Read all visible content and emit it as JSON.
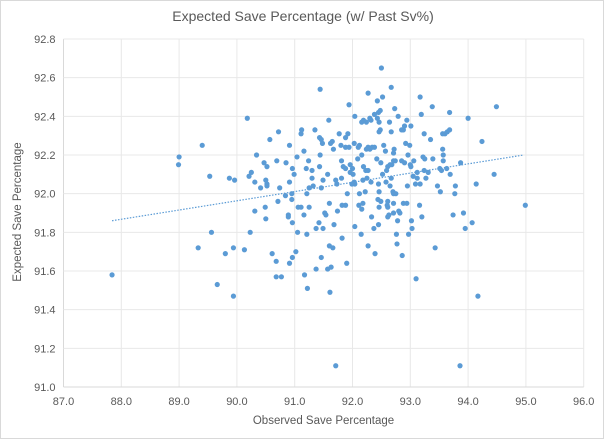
{
  "chart_data": {
    "type": "scatter",
    "title": "Expected Save Percentage (w/ Past Sv%)",
    "xlabel": "Observed Save Percentage",
    "ylabel": "Expected Save Percentage",
    "xlim": [
      87.0,
      96.0
    ],
    "ylim": [
      91.0,
      92.8
    ],
    "xticks": [
      "87.0",
      "88.0",
      "89.0",
      "90.0",
      "91.0",
      "92.0",
      "93.0",
      "94.0",
      "95.0",
      "96.0"
    ],
    "yticks": [
      "91.0",
      "91.2",
      "91.4",
      "91.6",
      "91.8",
      "92.0",
      "92.2",
      "92.4",
      "92.6",
      "92.8"
    ],
    "grid": true,
    "legend": "none",
    "marker_color": "#5B9BD5",
    "trendline": {
      "type": "linear",
      "style": "dotted",
      "x": [
        87.84,
        94.96
      ],
      "y": [
        91.86,
        92.2
      ]
    },
    "points": [
      [
        90.18,
        92.39
      ],
      [
        90.72,
        92.32
      ],
      [
        90.57,
        92.28
      ],
      [
        91.12,
        92.33
      ],
      [
        91.11,
        92.31
      ],
      [
        90.91,
        92.25
      ],
      [
        89.4,
        92.25
      ],
      [
        91.16,
        92.22
      ],
      [
        89.0,
        92.19
      ],
      [
        88.99,
        92.15
      ],
      [
        90.34,
        92.2
      ],
      [
        90.47,
        92.16
      ],
      [
        90.69,
        92.17
      ],
      [
        90.85,
        92.16
      ],
      [
        91.04,
        92.19
      ],
      [
        91.24,
        92.17
      ],
      [
        90.52,
        92.14
      ],
      [
        90.96,
        92.13
      ],
      [
        91.2,
        92.13
      ],
      [
        90.25,
        92.11
      ],
      [
        90.21,
        92.09
      ],
      [
        90.99,
        92.1
      ],
      [
        89.53,
        92.09
      ],
      [
        89.87,
        92.08
      ],
      [
        89.96,
        92.07
      ],
      [
        90.31,
        92.06
      ],
      [
        90.5,
        92.07
      ],
      [
        90.52,
        92.05
      ],
      [
        90.52,
        92.04
      ],
      [
        90.41,
        92.03
      ],
      [
        90.74,
        92.03
      ],
      [
        90.91,
        92.06
      ],
      [
        91.25,
        92.03
      ],
      [
        90.84,
        91.99
      ],
      [
        90.95,
        92.0
      ],
      [
        90.95,
        91.97
      ],
      [
        91.21,
        92.0
      ],
      [
        92.5,
        92.65
      ],
      [
        92.67,
        92.55
      ],
      [
        91.44,
        92.54
      ],
      [
        92.27,
        92.52
      ],
      [
        92.52,
        92.5
      ],
      [
        92.43,
        92.48
      ],
      [
        93.17,
        92.5
      ],
      [
        93.38,
        92.45
      ],
      [
        94.49,
        92.45
      ],
      [
        91.94,
        92.46
      ],
      [
        92.73,
        92.44
      ],
      [
        92.48,
        92.43
      ],
      [
        92.45,
        92.42
      ],
      [
        92.38,
        92.41
      ],
      [
        93.19,
        92.41
      ],
      [
        93.68,
        92.42
      ],
      [
        92.79,
        92.4
      ],
      [
        92.04,
        92.4
      ],
      [
        92.3,
        92.39
      ],
      [
        92.32,
        92.38
      ],
      [
        92.24,
        92.37
      ],
      [
        92.16,
        92.37
      ],
      [
        92.19,
        92.38
      ],
      [
        92.43,
        92.39
      ],
      [
        92.46,
        92.37
      ],
      [
        92.64,
        92.37
      ],
      [
        92.94,
        92.38
      ],
      [
        94.0,
        92.39
      ],
      [
        91.59,
        92.38
      ],
      [
        93.01,
        92.35
      ],
      [
        92.9,
        92.35
      ],
      [
        92.48,
        92.33
      ],
      [
        92.46,
        92.32
      ],
      [
        92.85,
        92.33
      ],
      [
        92.88,
        92.33
      ],
      [
        92.67,
        92.32
      ],
      [
        91.35,
        92.33
      ],
      [
        91.77,
        92.31
      ],
      [
        91.92,
        92.31
      ],
      [
        93.68,
        92.33
      ],
      [
        93.64,
        92.32
      ],
      [
        93.6,
        92.31
      ],
      [
        93.56,
        92.31
      ],
      [
        93.24,
        92.31
      ],
      [
        91.43,
        92.29
      ],
      [
        91.46,
        92.28
      ],
      [
        91.88,
        92.29
      ],
      [
        91.65,
        92.27
      ],
      [
        91.62,
        92.26
      ],
      [
        91.48,
        92.26
      ],
      [
        92.03,
        92.26
      ],
      [
        92.12,
        92.25
      ],
      [
        92.1,
        92.24
      ],
      [
        93.35,
        92.28
      ],
      [
        94.24,
        92.27
      ],
      [
        91.8,
        92.25
      ],
      [
        91.88,
        92.24
      ],
      [
        91.94,
        92.24
      ],
      [
        92.92,
        92.26
      ],
      [
        92.99,
        92.25
      ],
      [
        92.54,
        92.25
      ],
      [
        92.27,
        92.24
      ],
      [
        92.24,
        92.23
      ],
      [
        92.34,
        92.24
      ],
      [
        92.38,
        92.24
      ],
      [
        92.3,
        92.23
      ],
      [
        91.67,
        92.23
      ],
      [
        92.72,
        92.23
      ],
      [
        92.71,
        92.21
      ],
      [
        92.57,
        92.22
      ],
      [
        93.56,
        92.23
      ],
      [
        91.44,
        92.2
      ],
      [
        92.16,
        92.2
      ],
      [
        92.09,
        92.18
      ],
      [
        92.42,
        92.18
      ],
      [
        92.96,
        92.2
      ],
      [
        93.22,
        92.19
      ],
      [
        93.25,
        92.18
      ],
      [
        93.39,
        92.18
      ],
      [
        93.57,
        92.2
      ],
      [
        93.57,
        92.17
      ],
      [
        91.81,
        92.17
      ],
      [
        92.74,
        92.17
      ],
      [
        92.71,
        92.17
      ],
      [
        92.85,
        92.17
      ],
      [
        92.9,
        92.16
      ],
      [
        93.06,
        92.17
      ],
      [
        93.0,
        92.15
      ],
      [
        93.01,
        92.14
      ],
      [
        92.49,
        92.16
      ],
      [
        91.84,
        92.14
      ],
      [
        91.88,
        92.13
      ],
      [
        91.96,
        92.15
      ],
      [
        92.0,
        92.13
      ],
      [
        91.96,
        92.11
      ],
      [
        92.01,
        92.1
      ],
      [
        93.87,
        92.16
      ],
      [
        91.43,
        92.14
      ],
      [
        92.19,
        92.14
      ],
      [
        92.23,
        92.12
      ],
      [
        92.27,
        92.12
      ],
      [
        92.61,
        92.14
      ],
      [
        92.59,
        92.12
      ],
      [
        92.65,
        92.15
      ],
      [
        92.68,
        92.15
      ],
      [
        93.51,
        92.13
      ],
      [
        93.54,
        92.12
      ],
      [
        93.63,
        92.13
      ],
      [
        93.69,
        92.1
      ],
      [
        93.24,
        92.12
      ],
      [
        93.31,
        92.11
      ],
      [
        91.3,
        92.12
      ],
      [
        93.12,
        92.11
      ],
      [
        93.12,
        92.08
      ],
      [
        92.52,
        92.1
      ],
      [
        91.57,
        92.1
      ],
      [
        91.3,
        92.08
      ],
      [
        91.81,
        92.08
      ],
      [
        93.05,
        92.09
      ],
      [
        93.27,
        92.08
      ],
      [
        94.45,
        92.1
      ],
      [
        91.49,
        92.07
      ],
      [
        91.71,
        92.07
      ],
      [
        91.73,
        92.05
      ],
      [
        92.18,
        92.07
      ],
      [
        92.25,
        92.08
      ],
      [
        92.67,
        92.08
      ],
      [
        92.58,
        92.06
      ],
      [
        92.65,
        92.04
      ],
      [
        92.32,
        92.06
      ],
      [
        92.45,
        92.05
      ],
      [
        92.03,
        92.06
      ],
      [
        92.04,
        92.05
      ],
      [
        91.99,
        92.05
      ],
      [
        93.09,
        92.05
      ],
      [
        93.17,
        92.05
      ],
      [
        92.95,
        92.04
      ],
      [
        94.14,
        92.05
      ],
      [
        93.78,
        92.04
      ],
      [
        93.47,
        92.04
      ],
      [
        91.46,
        92.03
      ],
      [
        91.32,
        92.04
      ],
      [
        91.91,
        92.0
      ],
      [
        92.12,
        92.0
      ],
      [
        92.22,
        92.01
      ],
      [
        92.46,
        92.01
      ],
      [
        92.7,
        92.01
      ],
      [
        92.75,
        92.0
      ],
      [
        92.71,
        92.0
      ],
      [
        93.52,
        92.01
      ],
      [
        93.77,
        92.0
      ],
      [
        90.71,
        91.96
      ],
      [
        90.49,
        91.93
      ],
      [
        90.31,
        91.91
      ],
      [
        90.5,
        91.87
      ],
      [
        90.89,
        91.89
      ],
      [
        90.89,
        91.88
      ],
      [
        91.06,
        91.93
      ],
      [
        91.11,
        91.93
      ],
      [
        91.25,
        91.93
      ],
      [
        90.96,
        91.85
      ],
      [
        91.16,
        91.89
      ],
      [
        89.56,
        91.8
      ],
      [
        90.23,
        91.8
      ],
      [
        91.05,
        91.8
      ],
      [
        91.21,
        91.79
      ],
      [
        89.33,
        91.72
      ],
      [
        89.94,
        91.72
      ],
      [
        90.13,
        91.71
      ],
      [
        89.8,
        91.69
      ],
      [
        90.61,
        91.69
      ],
      [
        90.68,
        91.65
      ],
      [
        91.02,
        91.7
      ],
      [
        90.96,
        91.67
      ],
      [
        90.91,
        91.64
      ],
      [
        87.84,
        91.58
      ],
      [
        90.68,
        91.57
      ],
      [
        90.77,
        91.57
      ],
      [
        91.17,
        91.58
      ],
      [
        89.66,
        91.53
      ],
      [
        91.22,
        91.51
      ],
      [
        89.94,
        91.47
      ],
      [
        91.6,
        91.95
      ],
      [
        91.52,
        91.9
      ],
      [
        91.54,
        91.89
      ],
      [
        91.42,
        91.85
      ],
      [
        91.37,
        91.82
      ],
      [
        91.49,
        91.82
      ],
      [
        91.68,
        91.84
      ],
      [
        91.74,
        91.91
      ],
      [
        91.82,
        91.94
      ],
      [
        91.88,
        91.94
      ],
      [
        91.82,
        91.77
      ],
      [
        91.6,
        91.73
      ],
      [
        91.66,
        91.72
      ],
      [
        91.46,
        91.67
      ],
      [
        91.37,
        91.61
      ],
      [
        91.57,
        91.61
      ],
      [
        91.63,
        91.62
      ],
      [
        91.9,
        91.64
      ],
      [
        91.61,
        91.49
      ],
      [
        91.71,
        91.11
      ],
      [
        92.11,
        91.94
      ],
      [
        92.18,
        91.95
      ],
      [
        92.16,
        91.92
      ],
      [
        92.33,
        91.88
      ],
      [
        92.44,
        91.97
      ],
      [
        92.49,
        91.96
      ],
      [
        92.46,
        91.93
      ],
      [
        92.61,
        91.96
      ],
      [
        92.6,
        91.94
      ],
      [
        92.61,
        91.93
      ],
      [
        92.71,
        91.95
      ],
      [
        92.61,
        91.88
      ],
      [
        92.63,
        91.89
      ],
      [
        92.71,
        91.9
      ],
      [
        92.8,
        91.91
      ],
      [
        92.82,
        91.9
      ],
      [
        92.88,
        91.95
      ],
      [
        92.94,
        91.95
      ],
      [
        93.16,
        91.94
      ],
      [
        92.78,
        91.86
      ],
      [
        93.02,
        91.86
      ],
      [
        93.2,
        91.88
      ],
      [
        92.04,
        91.83
      ],
      [
        92.37,
        91.82
      ],
      [
        92.45,
        91.84
      ],
      [
        93.03,
        91.82
      ],
      [
        92.15,
        91.79
      ],
      [
        92.76,
        91.79
      ],
      [
        92.97,
        91.79
      ],
      [
        92.27,
        91.73
      ],
      [
        92.39,
        91.69
      ],
      [
        92.77,
        91.74
      ],
      [
        92.86,
        91.68
      ],
      [
        93.43,
        91.72
      ],
      [
        93.74,
        91.89
      ],
      [
        93.92,
        91.9
      ],
      [
        93.95,
        91.82
      ],
      [
        94.07,
        91.85
      ],
      [
        94.99,
        91.94
      ],
      [
        93.1,
        91.56
      ],
      [
        94.17,
        91.47
      ],
      [
        93.86,
        91.11
      ]
    ]
  }
}
